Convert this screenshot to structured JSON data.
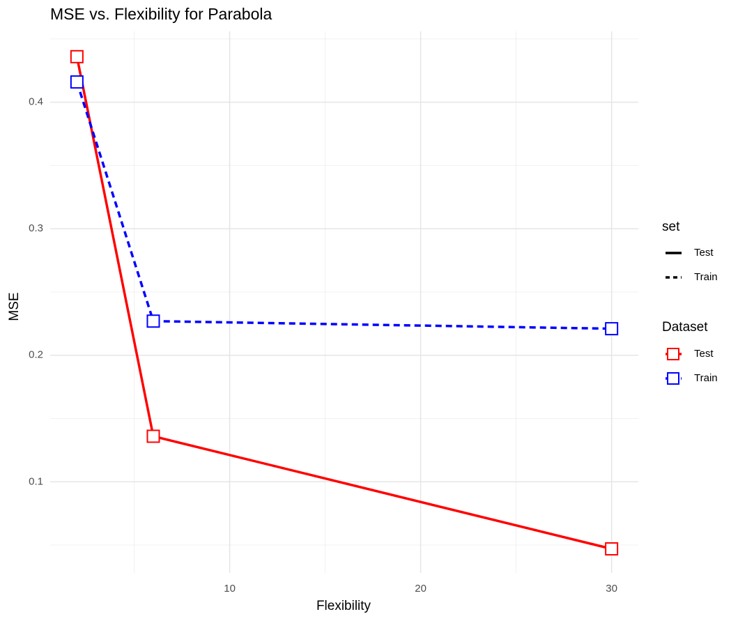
{
  "chart_data": {
    "type": "line",
    "title": "MSE vs. Flexibility for Parabola",
    "x_label": "Flexibility",
    "y_label": "MSE",
    "x": [
      2,
      6,
      30
    ],
    "series": [
      {
        "name": "Test",
        "color": "#ff0000",
        "linetype": "solid",
        "values": [
          0.436,
          0.136,
          0.047
        ]
      },
      {
        "name": "Train",
        "color": "#0000ff",
        "linetype": "dashed",
        "values": [
          0.416,
          0.227,
          0.221
        ]
      }
    ],
    "xlim": [
      0.6,
      31.4
    ],
    "ylim": [
      0.028,
      0.456
    ],
    "xticks": [
      10,
      20,
      30
    ],
    "yticks": [
      0.1,
      0.2,
      0.3,
      0.4
    ],
    "xminor": [
      5,
      15,
      25
    ],
    "yminor": [
      0.05,
      0.15,
      0.25,
      0.35,
      0.45
    ],
    "grid": true,
    "legend_titles": [
      "set",
      "Dataset"
    ],
    "legend_position": "right",
    "marker": "square"
  }
}
